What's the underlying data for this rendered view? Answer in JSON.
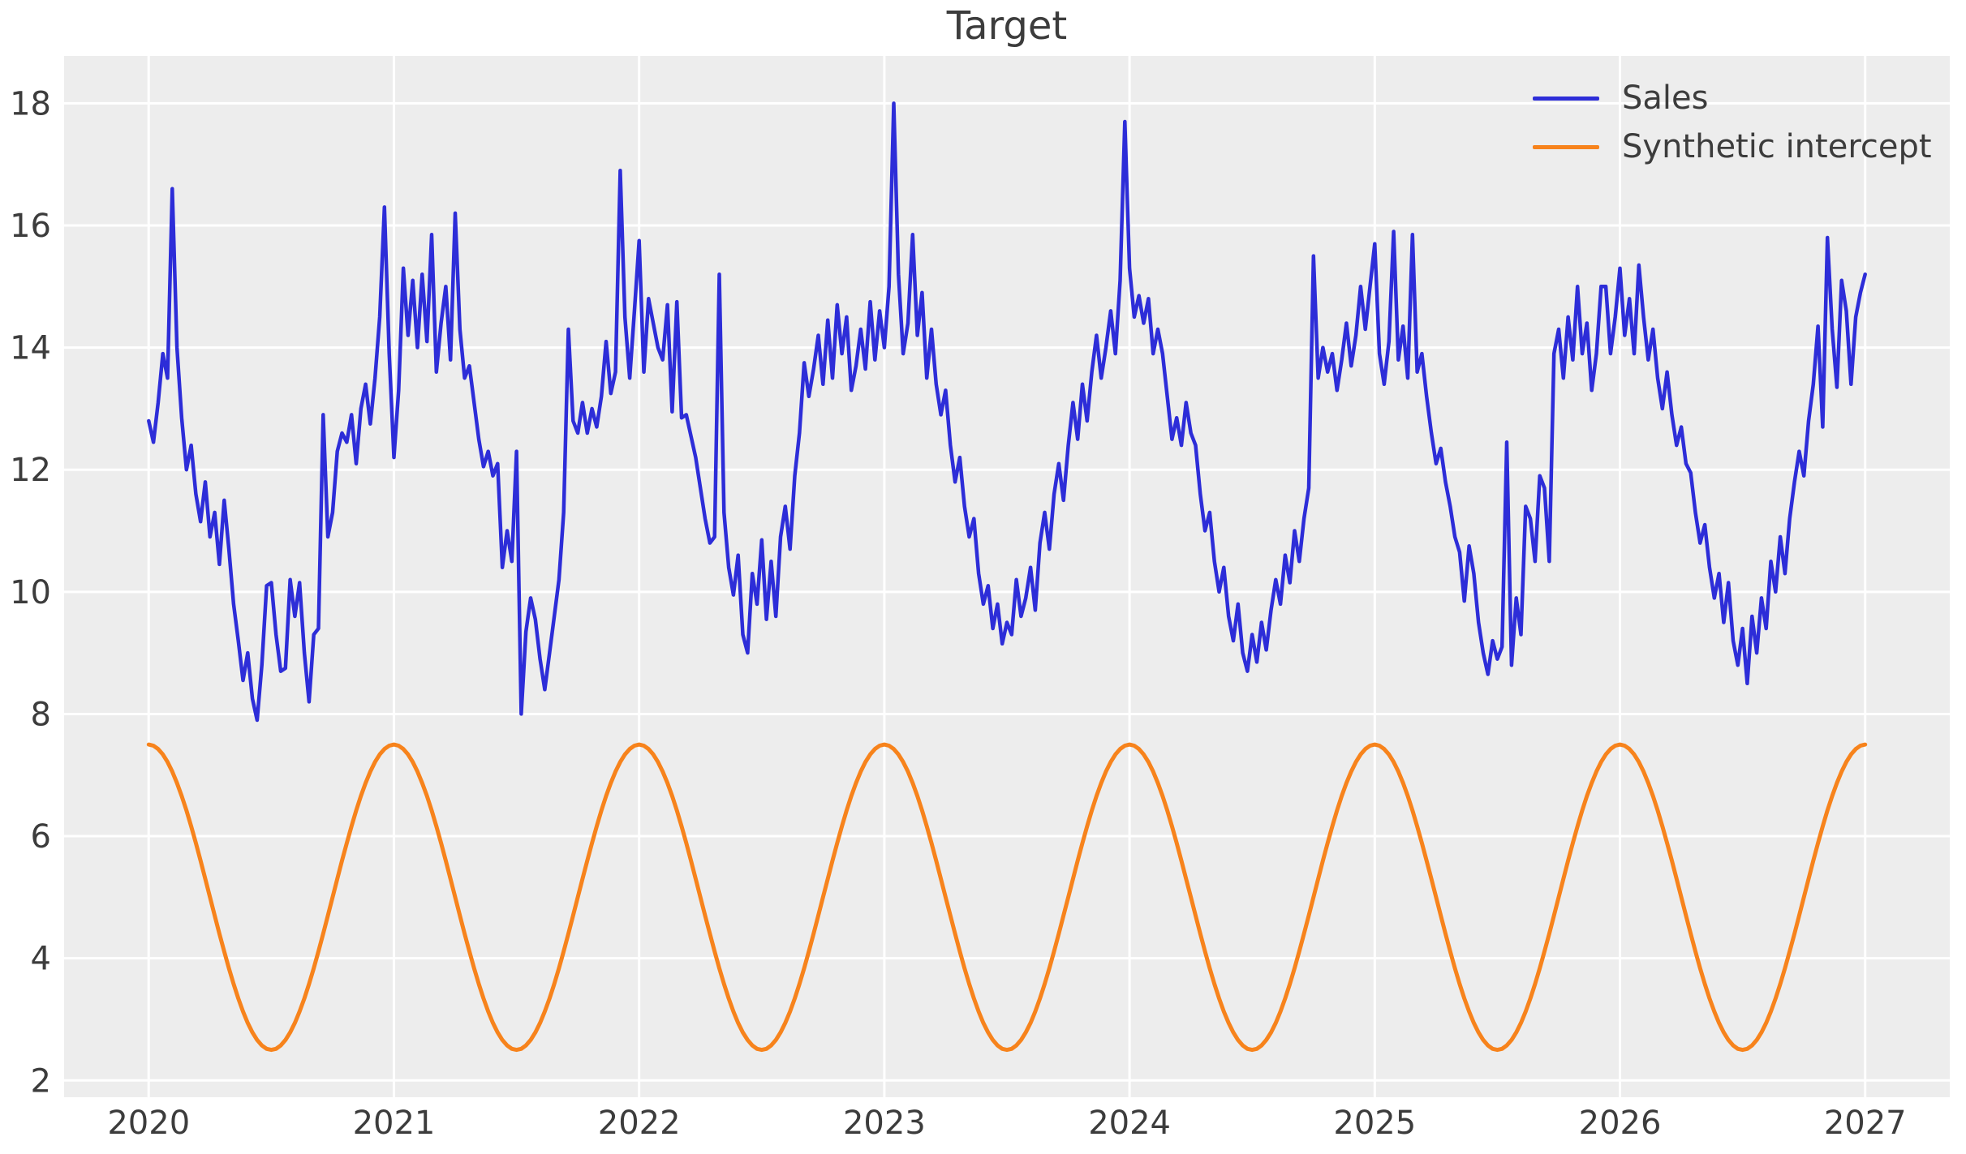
{
  "title": "Target",
  "colors": {
    "figure_bg": "#ffffff",
    "plot_bg": "#ededed",
    "grid": "#ffffff",
    "text": "#3c3c3c",
    "sales_line": "#2d2dd8",
    "intercept_line": "#f7831c"
  },
  "legend": [
    {
      "label": "Sales",
      "color": "#2d2dd8"
    },
    {
      "label": "Synthetic intercept",
      "color": "#f7831c"
    }
  ],
  "axes": {
    "x_tick_labels": [
      "2020",
      "2021",
      "2022",
      "2023",
      "2024",
      "2025",
      "2026",
      "2027"
    ],
    "x_tick_values": [
      2020,
      2021,
      2022,
      2023,
      2024,
      2025,
      2026,
      2027
    ],
    "y_tick_labels": [
      "2",
      "4",
      "6",
      "8",
      "10",
      "12",
      "14",
      "16",
      "18"
    ],
    "y_tick_values": [
      2,
      4,
      6,
      8,
      10,
      12,
      14,
      16,
      18
    ]
  },
  "chart_data": {
    "type": "line",
    "title": "Target",
    "xlabel": "",
    "ylabel": "",
    "grid": true,
    "legend_position": "upper right",
    "xlim": [
      2019.655,
      2027.345
    ],
    "ylim": [
      1.725,
      18.775
    ],
    "x_start": 2020,
    "points_per_year": 52,
    "series": [
      {
        "name": "Sales",
        "color": "#2d2dd8",
        "values": [
          12.8,
          12.45,
          13.1,
          13.9,
          13.5,
          16.6,
          14.0,
          12.85,
          12.0,
          12.4,
          11.6,
          11.15,
          11.8,
          10.9,
          11.3,
          10.45,
          11.5,
          10.7,
          9.8,
          9.2,
          8.55,
          9.0,
          8.25,
          7.9,
          8.8,
          10.1,
          10.15,
          9.3,
          8.7,
          8.75,
          10.2,
          9.6,
          10.15,
          9.0,
          8.2,
          9.3,
          9.4,
          12.9,
          10.9,
          11.3,
          12.3,
          12.6,
          12.45,
          12.9,
          12.1,
          13.0,
          13.4,
          12.75,
          13.5,
          14.5,
          16.3,
          13.9,
          12.2,
          13.3,
          15.3,
          14.2,
          15.1,
          14.0,
          15.2,
          14.1,
          15.85,
          13.6,
          14.4,
          15.0,
          13.8,
          16.2,
          14.3,
          13.5,
          13.7,
          13.1,
          12.5,
          12.05,
          12.3,
          11.9,
          12.1,
          10.4,
          11.0,
          10.5,
          12.3,
          8.0,
          9.35,
          9.9,
          9.55,
          8.9,
          8.4,
          9.0,
          9.6,
          10.2,
          11.3,
          14.3,
          12.8,
          12.6,
          13.1,
          12.6,
          13.0,
          12.7,
          13.2,
          14.1,
          13.25,
          13.6,
          16.9,
          14.5,
          13.5,
          14.6,
          15.75,
          13.6,
          14.8,
          14.4,
          14.0,
          13.8,
          14.7,
          12.95,
          14.75,
          12.85,
          12.9,
          12.55,
          12.2,
          11.7,
          11.2,
          10.8,
          10.9,
          15.2,
          11.3,
          10.4,
          9.95,
          10.6,
          9.3,
          9.0,
          10.3,
          9.8,
          10.85,
          9.55,
          10.5,
          9.6,
          10.9,
          11.4,
          10.7,
          11.9,
          12.6,
          13.75,
          13.2,
          13.65,
          14.2,
          13.4,
          14.45,
          13.5,
          14.7,
          13.9,
          14.5,
          13.3,
          13.7,
          14.3,
          13.65,
          14.75,
          13.8,
          14.6,
          14.0,
          15.0,
          18.0,
          15.2,
          13.9,
          14.4,
          15.85,
          14.2,
          14.9,
          13.5,
          14.3,
          13.4,
          12.9,
          13.3,
          12.4,
          11.8,
          12.2,
          11.4,
          10.9,
          11.2,
          10.3,
          9.8,
          10.1,
          9.4,
          9.8,
          9.15,
          9.5,
          9.3,
          10.2,
          9.6,
          9.9,
          10.4,
          9.7,
          10.8,
          11.3,
          10.7,
          11.6,
          12.1,
          11.5,
          12.4,
          13.1,
          12.5,
          13.4,
          12.8,
          13.6,
          14.2,
          13.5,
          14.0,
          14.6,
          13.9,
          15.1,
          17.7,
          15.3,
          14.5,
          14.85,
          14.4,
          14.8,
          13.9,
          14.3,
          13.9,
          13.2,
          12.5,
          12.85,
          12.4,
          13.1,
          12.6,
          12.4,
          11.6,
          11.0,
          11.3,
          10.5,
          10.0,
          10.4,
          9.6,
          9.2,
          9.8,
          9.0,
          8.7,
          9.3,
          8.85,
          9.5,
          9.05,
          9.7,
          10.2,
          9.8,
          10.6,
          10.15,
          11.0,
          10.5,
          11.2,
          11.7,
          15.5,
          13.5,
          14.0,
          13.6,
          13.9,
          13.3,
          13.8,
          14.4,
          13.7,
          14.2,
          15.0,
          14.3,
          15.0,
          15.7,
          13.9,
          13.4,
          14.1,
          15.9,
          13.8,
          14.35,
          13.5,
          15.85,
          13.6,
          13.9,
          13.2,
          12.6,
          12.1,
          12.35,
          11.8,
          11.4,
          10.9,
          10.65,
          9.85,
          10.75,
          10.3,
          9.5,
          9.0,
          8.65,
          9.2,
          8.9,
          9.1,
          12.45,
          8.8,
          9.9,
          9.3,
          11.4,
          11.2,
          10.5,
          11.9,
          11.7,
          10.5,
          13.9,
          14.3,
          13.5,
          14.5,
          13.8,
          15.0,
          13.9,
          14.4,
          13.3,
          13.9,
          15.0,
          15.0,
          13.9,
          14.5,
          15.3,
          14.2,
          14.8,
          13.9,
          15.35,
          14.5,
          13.8,
          14.3,
          13.5,
          13.0,
          13.6,
          12.9,
          12.4,
          12.7,
          12.1,
          11.95,
          11.3,
          10.8,
          11.1,
          10.4,
          9.9,
          10.3,
          9.5,
          10.15,
          9.2,
          8.8,
          9.4,
          8.5,
          9.6,
          9.0,
          9.9,
          9.4,
          10.5,
          10.0,
          10.9,
          10.3,
          11.2,
          11.8,
          12.3,
          11.9,
          12.8,
          13.4,
          14.35,
          12.7,
          15.8,
          14.3,
          13.35,
          15.1,
          14.6,
          13.4,
          14.5,
          14.9,
          15.2
        ]
      },
      {
        "name": "Synthetic intercept",
        "color": "#f7831c",
        "period_values": [
          7.5,
          7.482,
          7.427,
          7.338,
          7.214,
          7.058,
          6.871,
          6.658,
          6.42,
          6.162,
          5.886,
          5.598,
          5.301,
          5.0,
          4.699,
          4.402,
          4.114,
          3.838,
          3.58,
          3.342,
          3.129,
          2.942,
          2.786,
          2.662,
          2.573,
          2.518,
          2.5,
          2.518,
          2.573,
          2.662,
          2.786,
          2.942,
          3.129,
          3.342,
          3.58,
          3.838,
          4.114,
          4.402,
          4.699,
          5.0,
          5.301,
          5.598,
          5.886,
          6.162,
          6.42,
          6.658,
          6.871,
          7.058,
          7.214,
          7.338,
          7.427,
          7.482
        ],
        "repeat": 7,
        "final_value": 7.5
      }
    ]
  }
}
